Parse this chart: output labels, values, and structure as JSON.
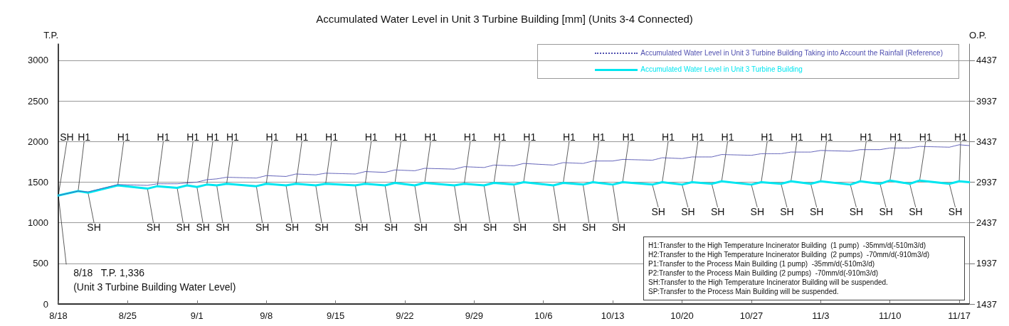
{
  "chart_data": {
    "type": "line",
    "title": "Accumulated Water Level in Unit 3 Turbine Building [mm] (Units 3-4 Connected)",
    "ylabel": "T.P.",
    "y2label": "O.P.",
    "xlim": [
      "--08-18",
      "--11-18"
    ],
    "xticks": [
      {
        "value": "--08-18",
        "label": "8/18"
      },
      {
        "value": "--08-25",
        "label": "8/25"
      },
      {
        "value": "--09-01",
        "label": "9/1"
      },
      {
        "value": "--09-08",
        "label": "9/8"
      },
      {
        "value": "--09-15",
        "label": "9/15"
      },
      {
        "value": "--09-22",
        "label": "9/22"
      },
      {
        "value": "--09-29",
        "label": "9/29"
      },
      {
        "value": "--10-06",
        "label": "10/6"
      },
      {
        "value": "--10-13",
        "label": "10/13"
      },
      {
        "value": "--10-20",
        "label": "10/20"
      },
      {
        "value": "--10-27",
        "label": "10/27"
      },
      {
        "value": "--11-03",
        "label": "11/3"
      },
      {
        "value": "--11-10",
        "label": "11/10"
      },
      {
        "value": "--11-17",
        "label": "11/17"
      }
    ],
    "ylim": [
      0,
      3200
    ],
    "yticks": [
      0,
      500,
      1000,
      1500,
      2000,
      2500,
      3000
    ],
    "y2lim": [
      1437,
      4637
    ],
    "y2ticks": [
      1437,
      1937,
      2437,
      2937,
      3437,
      3937,
      4437
    ],
    "grid": "y",
    "legend": "top right",
    "x": [
      "--08-18",
      "--08-20",
      "--08-21",
      "--08-24",
      "--08-27",
      "--08-28",
      "--08-30",
      "--08-31",
      "--09-01",
      "--09-02",
      "--09-03",
      "--09-04",
      "--09-07",
      "--09-08",
      "--09-10",
      "--09-11",
      "--09-13",
      "--09-14",
      "--09-17",
      "--09-18",
      "--09-20",
      "--09-21",
      "--09-23",
      "--09-24",
      "--09-27",
      "--09-28",
      "--09-30",
      "--10-01",
      "--10-03",
      "--10-04",
      "--10-07",
      "--10-08",
      "--10-10",
      "--10-11",
      "--10-13",
      "--10-14",
      "--10-17",
      "--10-18",
      "--10-20",
      "--10-21",
      "--10-23",
      "--10-24",
      "--10-27",
      "--10-28",
      "--10-30",
      "--10-31",
      "--11-02",
      "--11-03",
      "--11-06",
      "--11-07",
      "--11-09",
      "--11-10",
      "--11-12",
      "--11-13",
      "--11-16",
      "--11-17",
      "--11-18"
    ],
    "series": [
      {
        "name": "Accumulated Water Level in Unit 3 Turbine Building Taking into Account the Rainfall (Reference)",
        "color": "#5050b0",
        "line_style": "dotted",
        "values": [
          1336,
          1390,
          1380,
          1470,
          1460,
          1480,
          1480,
          1490,
          1500,
          1530,
          1540,
          1560,
          1550,
          1580,
          1570,
          1600,
          1590,
          1610,
          1600,
          1630,
          1620,
          1650,
          1640,
          1670,
          1660,
          1690,
          1680,
          1710,
          1700,
          1730,
          1710,
          1740,
          1730,
          1760,
          1760,
          1780,
          1770,
          1800,
          1790,
          1810,
          1810,
          1840,
          1830,
          1850,
          1850,
          1870,
          1870,
          1890,
          1880,
          1900,
          1900,
          1920,
          1920,
          1940,
          1930,
          1960,
          1950
        ]
      },
      {
        "name": "Accumulated Water Level in Unit 3 Turbine Building",
        "color": "#00e6f0",
        "line_style": "solid",
        "values": [
          1336,
          1390,
          1370,
          1460,
          1420,
          1450,
          1430,
          1460,
          1440,
          1470,
          1460,
          1480,
          1450,
          1480,
          1460,
          1480,
          1460,
          1480,
          1460,
          1480,
          1460,
          1490,
          1460,
          1490,
          1460,
          1480,
          1460,
          1490,
          1470,
          1500,
          1460,
          1490,
          1470,
          1500,
          1470,
          1500,
          1470,
          1500,
          1470,
          1500,
          1480,
          1510,
          1470,
          1500,
          1480,
          1510,
          1480,
          1510,
          1470,
          1510,
          1480,
          1520,
          1480,
          1520,
          1480,
          1510,
          1500
        ]
      }
    ],
    "annotations": [
      {
        "text": "8/18   T.P. 1,336\n(Unit 3 Turbine Building Water Level)",
        "x": "--08-18",
        "y": 1336
      },
      {
        "text": "H1",
        "x": "--08-20",
        "y": 1390
      },
      {
        "text": "SH",
        "x": "--08-21",
        "y": 1370
      },
      {
        "text": "SH",
        "x": "--08-18",
        "y": 1336
      },
      {
        "text": "H1",
        "x": "--08-24",
        "y": 1460
      },
      {
        "text": "SH",
        "x": "--08-27",
        "y": 1420
      },
      {
        "text": "H1",
        "x": "--08-28",
        "y": 1450
      },
      {
        "text": "SH",
        "x": "--08-30",
        "y": 1430
      },
      {
        "text": "H1",
        "x": "--08-31",
        "y": 1460
      },
      {
        "text": "SH",
        "x": "--09-01",
        "y": 1440
      },
      {
        "text": "H1",
        "x": "--09-02",
        "y": 1470
      },
      {
        "text": "SH",
        "x": "--09-03",
        "y": 1460
      },
      {
        "text": "H1",
        "x": "--09-04",
        "y": 1480
      },
      {
        "text": "SH",
        "x": "--09-07",
        "y": 1450
      },
      {
        "text": "H1",
        "x": "--09-08",
        "y": 1480
      },
      {
        "text": "SH",
        "x": "--09-10",
        "y": 1460
      },
      {
        "text": "H1",
        "x": "--09-11",
        "y": 1480
      },
      {
        "text": "SH",
        "x": "--09-13",
        "y": 1460
      },
      {
        "text": "H1",
        "x": "--09-14",
        "y": 1480
      },
      {
        "text": "SH",
        "x": "--09-17",
        "y": 1460
      },
      {
        "text": "H1",
        "x": "--09-18",
        "y": 1480
      },
      {
        "text": "SH",
        "x": "--09-20",
        "y": 1460
      },
      {
        "text": "H1",
        "x": "--09-21",
        "y": 1490
      },
      {
        "text": "SH",
        "x": "--09-23",
        "y": 1460
      },
      {
        "text": "H1",
        "x": "--09-24",
        "y": 1490
      },
      {
        "text": "SH",
        "x": "--09-27",
        "y": 1460
      },
      {
        "text": "H1",
        "x": "--09-28",
        "y": 1480
      },
      {
        "text": "SH",
        "x": "--09-30",
        "y": 1460
      },
      {
        "text": "H1",
        "x": "--10-01",
        "y": 1490
      },
      {
        "text": "SH",
        "x": "--10-03",
        "y": 1470
      },
      {
        "text": "H1",
        "x": "--10-04",
        "y": 1500
      },
      {
        "text": "SH",
        "x": "--10-07",
        "y": 1460
      },
      {
        "text": "H1",
        "x": "--10-08",
        "y": 1490
      },
      {
        "text": "SH",
        "x": "--10-10",
        "y": 1470
      },
      {
        "text": "H1",
        "x": "--10-11",
        "y": 1500
      },
      {
        "text": "SH",
        "x": "--10-13",
        "y": 1470
      },
      {
        "text": "H1",
        "x": "--10-14",
        "y": 1500
      },
      {
        "text": "SH",
        "x": "--10-17",
        "y": 1470
      },
      {
        "text": "H1",
        "x": "--10-18",
        "y": 1500
      },
      {
        "text": "SH",
        "x": "--10-20",
        "y": 1470
      },
      {
        "text": "H1",
        "x": "--10-21",
        "y": 1500
      },
      {
        "text": "SH",
        "x": "--10-23",
        "y": 1480
      },
      {
        "text": "H1",
        "x": "--10-24",
        "y": 1510
      },
      {
        "text": "SH",
        "x": "--10-27",
        "y": 1470
      },
      {
        "text": "H1",
        "x": "--10-28",
        "y": 1500
      },
      {
        "text": "SH",
        "x": "--10-30",
        "y": 1480
      },
      {
        "text": "H1",
        "x": "--10-31",
        "y": 1510
      },
      {
        "text": "SH",
        "x": "--11-02",
        "y": 1480
      },
      {
        "text": "H1",
        "x": "--11-03",
        "y": 1510
      },
      {
        "text": "SH",
        "x": "--11-06",
        "y": 1470
      },
      {
        "text": "H1",
        "x": "--11-07",
        "y": 1510
      },
      {
        "text": "SH",
        "x": "--11-09",
        "y": 1480
      },
      {
        "text": "H1",
        "x": "--11-10",
        "y": 1520
      },
      {
        "text": "SH",
        "x": "--11-12",
        "y": 1480
      },
      {
        "text": "H1",
        "x": "--11-13",
        "y": 1520
      },
      {
        "text": "SH",
        "x": "--11-16",
        "y": 1480
      },
      {
        "text": "H1",
        "x": "--11-17",
        "y": 1510
      },
      "H1:Transfer to the High Temperature Incinerator Building  (1 pump)  -35mm/d(-510m3/d)",
      "H2:Transfer to the High Temperature Incinerator Building  (2 pumps)  -70mm/d(-910m3/d)",
      "P1:Transfer to the Process Main Building (1 pump)  -35mm/d(-510m3/d)",
      "P2:Transfer to the Process Main Building (2 pumps)  -70mm/d(-910m3/d)",
      "SH:Transfer to the High Temperature Incinerator Building will be suspended.",
      "SP:Transfer to the Process Main Building will be suspended."
    ]
  }
}
